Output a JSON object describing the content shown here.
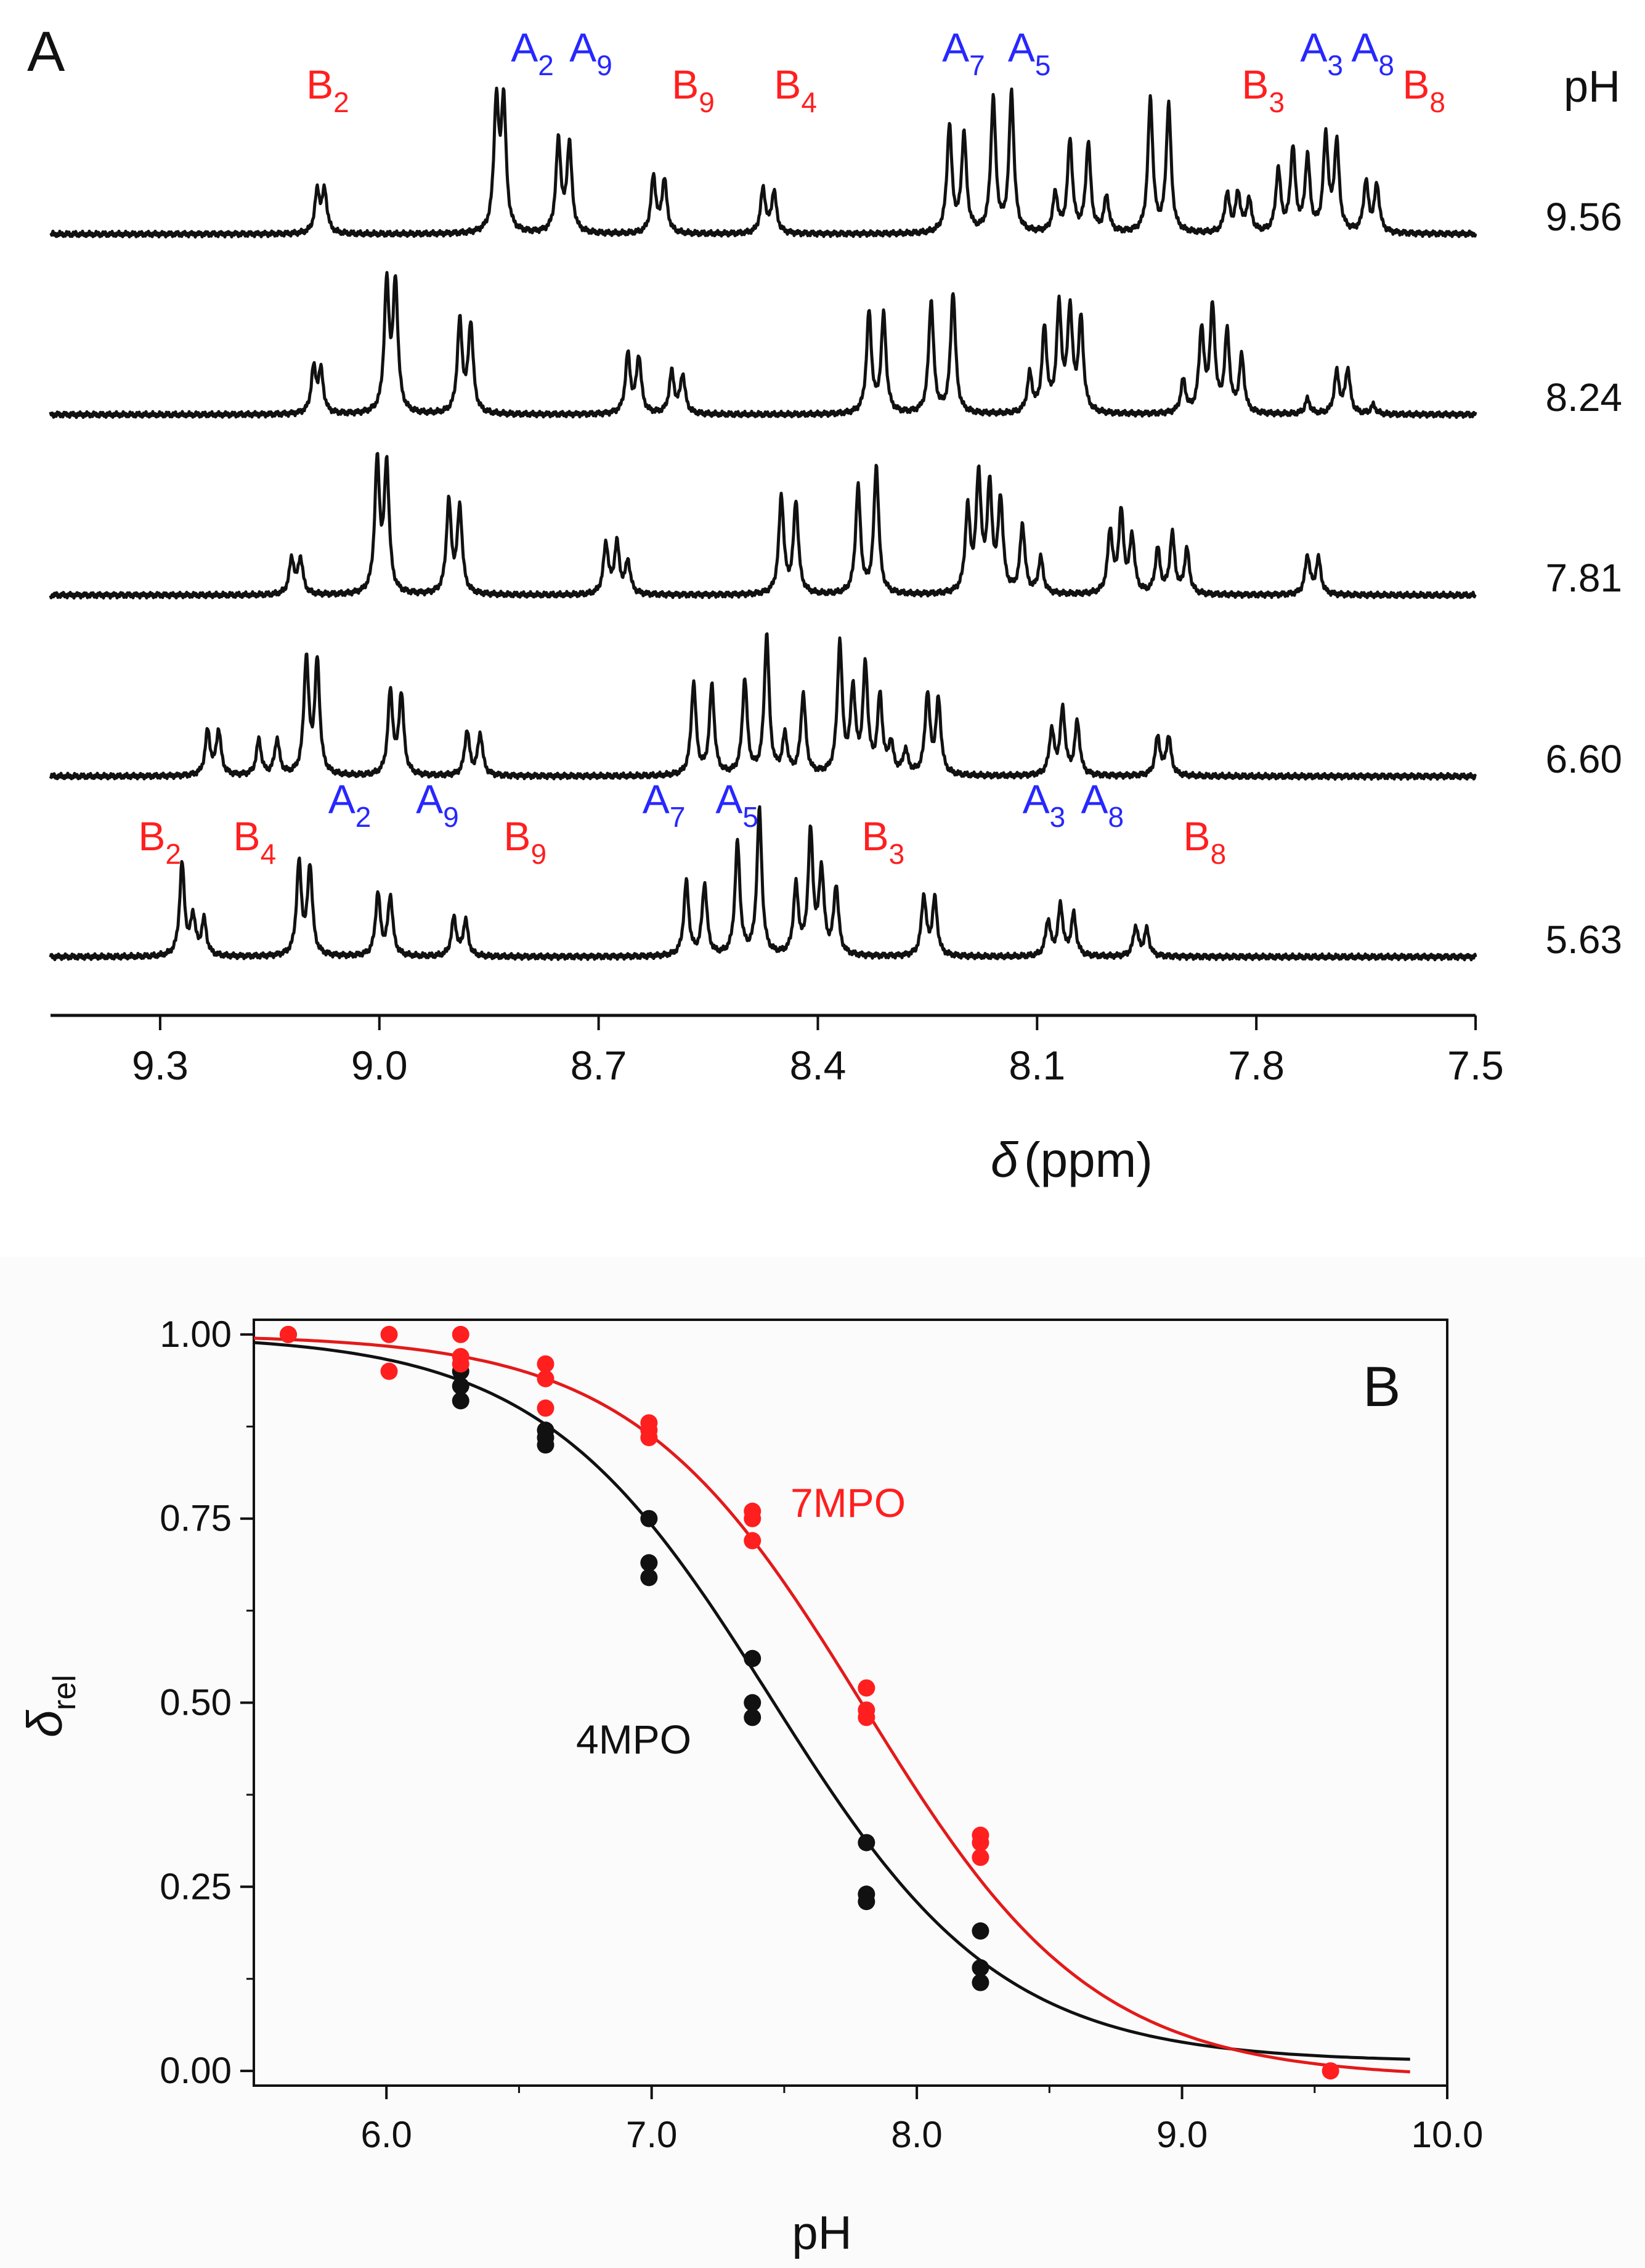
{
  "figure": {
    "panelA_letter": "A",
    "panelB_letter": "B"
  },
  "colors": {
    "red": "#ff1f1f",
    "blue": "#2727ff",
    "black": "#111111",
    "redCurve": "#e31a1a"
  },
  "chart_data": [
    {
      "type": "line",
      "title": "",
      "panel": "A",
      "xlabel_symbol": "δ",
      "xlabel_unit": "(ppm)",
      "xlim": [
        9.45,
        7.5
      ],
      "xticks": [
        "9.3",
        "9.0",
        "8.7",
        "8.4",
        "8.1",
        "7.8",
        "7.5"
      ],
      "ph_header": "pH",
      "spectra": [
        {
          "ph": "9.56",
          "peaks": [
            {
              "d": 9.085,
              "h": 0.28
            },
            {
              "d": 9.075,
              "h": 0.28
            },
            {
              "d": 8.84,
              "h": 0.86
            },
            {
              "d": 8.83,
              "h": 0.86
            },
            {
              "d": 8.755,
              "h": 0.62
            },
            {
              "d": 8.74,
              "h": 0.6
            },
            {
              "d": 8.625,
              "h": 0.38
            },
            {
              "d": 8.61,
              "h": 0.36
            },
            {
              "d": 8.475,
              "h": 0.3
            },
            {
              "d": 8.46,
              "h": 0.28
            },
            {
              "d": 8.22,
              "h": 0.72
            },
            {
              "d": 8.2,
              "h": 0.66
            },
            {
              "d": 8.16,
              "h": 0.9
            },
            {
              "d": 8.135,
              "h": 0.94
            },
            {
              "d": 8.075,
              "h": 0.26
            },
            {
              "d": 8.055,
              "h": 0.62
            },
            {
              "d": 8.03,
              "h": 0.6
            },
            {
              "d": 8.005,
              "h": 0.24
            },
            {
              "d": 7.945,
              "h": 0.9
            },
            {
              "d": 7.92,
              "h": 0.86
            },
            {
              "d": 7.84,
              "h": 0.26
            },
            {
              "d": 7.825,
              "h": 0.26
            },
            {
              "d": 7.81,
              "h": 0.22
            },
            {
              "d": 7.77,
              "h": 0.42
            },
            {
              "d": 7.75,
              "h": 0.56
            },
            {
              "d": 7.73,
              "h": 0.5
            },
            {
              "d": 7.705,
              "h": 0.64
            },
            {
              "d": 7.69,
              "h": 0.6
            },
            {
              "d": 7.65,
              "h": 0.34
            },
            {
              "d": 7.635,
              "h": 0.32
            }
          ]
        },
        {
          "ph": "8.24",
          "peaks": [
            {
              "d": 9.09,
              "h": 0.3
            },
            {
              "d": 9.08,
              "h": 0.28
            },
            {
              "d": 8.99,
              "h": 0.86
            },
            {
              "d": 8.978,
              "h": 0.86
            },
            {
              "d": 8.89,
              "h": 0.62
            },
            {
              "d": 8.875,
              "h": 0.6
            },
            {
              "d": 8.66,
              "h": 0.4
            },
            {
              "d": 8.645,
              "h": 0.38
            },
            {
              "d": 8.6,
              "h": 0.28
            },
            {
              "d": 8.585,
              "h": 0.26
            },
            {
              "d": 8.33,
              "h": 0.68
            },
            {
              "d": 8.31,
              "h": 0.66
            },
            {
              "d": 8.245,
              "h": 0.76
            },
            {
              "d": 8.215,
              "h": 0.82
            },
            {
              "d": 8.11,
              "h": 0.26
            },
            {
              "d": 8.09,
              "h": 0.56
            },
            {
              "d": 8.07,
              "h": 0.7
            },
            {
              "d": 8.055,
              "h": 0.68
            },
            {
              "d": 8.04,
              "h": 0.62
            },
            {
              "d": 7.9,
              "h": 0.22
            },
            {
              "d": 7.875,
              "h": 0.56
            },
            {
              "d": 7.86,
              "h": 0.7
            },
            {
              "d": 7.84,
              "h": 0.54
            },
            {
              "d": 7.82,
              "h": 0.38
            },
            {
              "d": 7.73,
              "h": 0.1
            },
            {
              "d": 7.69,
              "h": 0.28
            },
            {
              "d": 7.675,
              "h": 0.3
            },
            {
              "d": 7.64,
              "h": 0.06
            }
          ]
        },
        {
          "ph": "7.81",
          "peaks": [
            {
              "d": 9.12,
              "h": 0.24
            },
            {
              "d": 9.108,
              "h": 0.24
            },
            {
              "d": 9.003,
              "h": 0.88
            },
            {
              "d": 8.99,
              "h": 0.86
            },
            {
              "d": 8.905,
              "h": 0.62
            },
            {
              "d": 8.89,
              "h": 0.58
            },
            {
              "d": 8.69,
              "h": 0.34
            },
            {
              "d": 8.675,
              "h": 0.34
            },
            {
              "d": 8.66,
              "h": 0.22
            },
            {
              "d": 8.45,
              "h": 0.66
            },
            {
              "d": 8.43,
              "h": 0.62
            },
            {
              "d": 8.345,
              "h": 0.72
            },
            {
              "d": 8.32,
              "h": 0.86
            },
            {
              "d": 8.195,
              "h": 0.56
            },
            {
              "d": 8.18,
              "h": 0.78
            },
            {
              "d": 8.165,
              "h": 0.7
            },
            {
              "d": 8.15,
              "h": 0.62
            },
            {
              "d": 8.12,
              "h": 0.46
            },
            {
              "d": 8.095,
              "h": 0.24
            },
            {
              "d": 8.0,
              "h": 0.42
            },
            {
              "d": 7.985,
              "h": 0.54
            },
            {
              "d": 7.97,
              "h": 0.38
            },
            {
              "d": 7.935,
              "h": 0.3
            },
            {
              "d": 7.915,
              "h": 0.4
            },
            {
              "d": 7.895,
              "h": 0.3
            },
            {
              "d": 7.73,
              "h": 0.26
            },
            {
              "d": 7.715,
              "h": 0.24
            }
          ]
        },
        {
          "ph": "6.60",
          "peaks": [
            {
              "d": 9.235,
              "h": 0.3
            },
            {
              "d": 9.22,
              "h": 0.3
            },
            {
              "d": 9.165,
              "h": 0.24
            },
            {
              "d": 9.14,
              "h": 0.24
            },
            {
              "d": 9.1,
              "h": 0.78
            },
            {
              "d": 9.085,
              "h": 0.76
            },
            {
              "d": 8.985,
              "h": 0.56
            },
            {
              "d": 8.97,
              "h": 0.54
            },
            {
              "d": 8.88,
              "h": 0.3
            },
            {
              "d": 8.862,
              "h": 0.28
            },
            {
              "d": 8.57,
              "h": 0.62
            },
            {
              "d": 8.545,
              "h": 0.6
            },
            {
              "d": 8.5,
              "h": 0.64
            },
            {
              "d": 8.47,
              "h": 0.94
            },
            {
              "d": 8.445,
              "h": 0.26
            },
            {
              "d": 8.42,
              "h": 0.54
            },
            {
              "d": 8.37,
              "h": 0.88
            },
            {
              "d": 8.352,
              "h": 0.56
            },
            {
              "d": 8.335,
              "h": 0.72
            },
            {
              "d": 8.315,
              "h": 0.52
            },
            {
              "d": 8.3,
              "h": 0.2
            },
            {
              "d": 8.28,
              "h": 0.16
            },
            {
              "d": 8.25,
              "h": 0.54
            },
            {
              "d": 8.235,
              "h": 0.5
            },
            {
              "d": 8.08,
              "h": 0.3
            },
            {
              "d": 8.065,
              "h": 0.44
            },
            {
              "d": 8.045,
              "h": 0.36
            },
            {
              "d": 7.935,
              "h": 0.26
            },
            {
              "d": 7.92,
              "h": 0.26
            }
          ]
        },
        {
          "ph": "5.63",
          "peaks": [
            {
              "d": 9.27,
              "h": 0.62
            },
            {
              "d": 9.255,
              "h": 0.26
            },
            {
              "d": 9.24,
              "h": 0.24
            },
            {
              "d": 9.11,
              "h": 0.62
            },
            {
              "d": 9.095,
              "h": 0.6
            },
            {
              "d": 9.002,
              "h": 0.42
            },
            {
              "d": 8.985,
              "h": 0.4
            },
            {
              "d": 8.898,
              "h": 0.26
            },
            {
              "d": 8.882,
              "h": 0.24
            },
            {
              "d": 8.58,
              "h": 0.5
            },
            {
              "d": 8.555,
              "h": 0.48
            },
            {
              "d": 8.51,
              "h": 0.76
            },
            {
              "d": 8.48,
              "h": 0.98
            },
            {
              "d": 8.43,
              "h": 0.46
            },
            {
              "d": 8.41,
              "h": 0.82
            },
            {
              "d": 8.395,
              "h": 0.56
            },
            {
              "d": 8.375,
              "h": 0.46
            },
            {
              "d": 8.255,
              "h": 0.4
            },
            {
              "d": 8.24,
              "h": 0.38
            },
            {
              "d": 8.085,
              "h": 0.24
            },
            {
              "d": 8.068,
              "h": 0.34
            },
            {
              "d": 8.05,
              "h": 0.28
            },
            {
              "d": 7.965,
              "h": 0.2
            },
            {
              "d": 7.95,
              "h": 0.18
            }
          ]
        }
      ],
      "labels_top": [
        {
          "letter": "B",
          "sub": "2",
          "color": "red",
          "d": 9.1
        },
        {
          "letter": "A",
          "sub": "2",
          "color": "blue",
          "d": 8.82
        },
        {
          "letter": "A",
          "sub": "9",
          "color": "blue",
          "d": 8.74
        },
        {
          "letter": "B",
          "sub": "9",
          "color": "red",
          "d": 8.6
        },
        {
          "letter": "B",
          "sub": "4",
          "color": "red",
          "d": 8.46
        },
        {
          "letter": "A",
          "sub": "7",
          "color": "blue",
          "d": 8.23
        },
        {
          "letter": "A",
          "sub": "5",
          "color": "blue",
          "d": 8.14
        },
        {
          "letter": "B",
          "sub": "3",
          "color": "red",
          "d": 7.82
        },
        {
          "letter": "A",
          "sub": "3",
          "color": "blue",
          "d": 7.74
        },
        {
          "letter": "A",
          "sub": "8",
          "color": "blue",
          "d": 7.67
        },
        {
          "letter": "B",
          "sub": "8",
          "color": "red",
          "d": 7.6
        }
      ],
      "labels_bottom": [
        {
          "letter": "B",
          "sub": "2",
          "color": "red",
          "d": 9.33
        },
        {
          "letter": "B",
          "sub": "4",
          "color": "red",
          "d": 9.2
        },
        {
          "letter": "A",
          "sub": "2",
          "color": "blue",
          "d": 9.07
        },
        {
          "letter": "A",
          "sub": "9",
          "color": "blue",
          "d": 8.95
        },
        {
          "letter": "B",
          "sub": "9",
          "color": "red",
          "d": 8.83
        },
        {
          "letter": "A",
          "sub": "7",
          "color": "blue",
          "d": 8.64
        },
        {
          "letter": "A",
          "sub": "5",
          "color": "blue",
          "d": 8.54
        },
        {
          "letter": "B",
          "sub": "3",
          "color": "red",
          "d": 8.34
        },
        {
          "letter": "A",
          "sub": "3",
          "color": "blue",
          "d": 8.12
        },
        {
          "letter": "A",
          "sub": "8",
          "color": "blue",
          "d": 8.04
        },
        {
          "letter": "B",
          "sub": "8",
          "color": "red",
          "d": 7.9
        }
      ]
    },
    {
      "type": "scatter",
      "panel": "B",
      "title": "",
      "xlabel": "pH",
      "ylabel_symbol": "δ",
      "ylabel_sub": "rel",
      "xlim": [
        5.5,
        10.0
      ],
      "ylim": [
        -0.02,
        1.02
      ],
      "xticks": [
        "6.0",
        "7.0",
        "8.0",
        "9.0",
        "10.0"
      ],
      "yticks": [
        "0.00",
        "0.25",
        "0.50",
        "0.75",
        "1.00"
      ],
      "series": [
        {
          "name": "4MPO",
          "color": "black",
          "pKa": 7.45,
          "curve_max": 1.0,
          "curve_min": 0.012,
          "points": [
            [
              5.63,
              1.0
            ],
            [
              6.28,
              0.91
            ],
            [
              6.28,
              0.93
            ],
            [
              6.28,
              0.95
            ],
            [
              6.6,
              0.85
            ],
            [
              6.6,
              0.86
            ],
            [
              6.6,
              0.87
            ],
            [
              6.99,
              0.75
            ],
            [
              6.99,
              0.69
            ],
            [
              6.99,
              0.67
            ],
            [
              7.38,
              0.56
            ],
            [
              7.38,
              0.5
            ],
            [
              7.38,
              0.48
            ],
            [
              7.81,
              0.31
            ],
            [
              7.81,
              0.24
            ],
            [
              7.81,
              0.23
            ],
            [
              8.24,
              0.19
            ],
            [
              8.24,
              0.14
            ],
            [
              8.24,
              0.12
            ]
          ]
        },
        {
          "name": "7MPO",
          "color": "red",
          "pKa": 7.8,
          "curve_max": 1.0,
          "curve_min": -0.01,
          "points": [
            [
              5.63,
              1.0
            ],
            [
              6.01,
              1.0
            ],
            [
              6.01,
              0.95
            ],
            [
              6.28,
              1.0
            ],
            [
              6.28,
              0.97
            ],
            [
              6.28,
              0.96
            ],
            [
              6.6,
              0.96
            ],
            [
              6.6,
              0.94
            ],
            [
              6.6,
              0.9
            ],
            [
              6.99,
              0.88
            ],
            [
              6.99,
              0.87
            ],
            [
              6.99,
              0.86
            ],
            [
              7.38,
              0.76
            ],
            [
              7.38,
              0.75
            ],
            [
              7.38,
              0.72
            ],
            [
              7.81,
              0.52
            ],
            [
              7.81,
              0.49
            ],
            [
              7.81,
              0.48
            ],
            [
              8.24,
              0.32
            ],
            [
              8.24,
              0.31
            ],
            [
              8.24,
              0.29
            ],
            [
              9.56,
              0.0
            ]
          ]
        }
      ]
    }
  ]
}
